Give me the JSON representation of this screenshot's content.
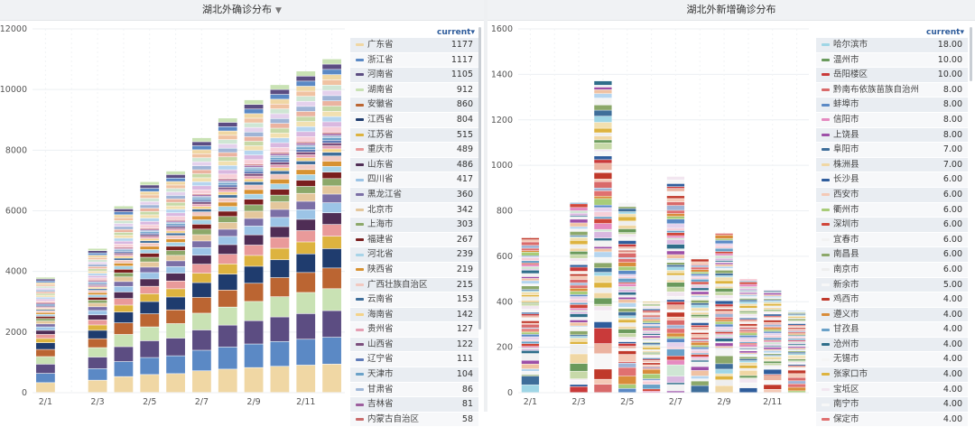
{
  "chart_data": [
    {
      "type": "bar",
      "stacked": true,
      "title": "湖北外确诊分布",
      "categories": [
        "2/1",
        "2/2",
        "2/3",
        "2/4",
        "2/5",
        "2/6",
        "2/7",
        "2/8",
        "2/9",
        "2/10",
        "2/11",
        "2/12"
      ],
      "xtick_labels": [
        "2/1",
        "2/3",
        "2/5",
        "2/7",
        "2/9",
        "2/11"
      ],
      "yticks": [
        0,
        2000,
        4000,
        6000,
        8000,
        10000,
        12000
      ],
      "ylim": [
        0,
        12000
      ],
      "totals": [
        3800,
        0,
        4750,
        6150,
        6950,
        7300,
        8400,
        9050,
        9650,
        10150,
        10600,
        11000
      ],
      "legend_header": "current",
      "series": [
        {
          "name": "广东省",
          "value": "1177",
          "color": "#f0d7a4"
        },
        {
          "name": "浙江省",
          "value": "1117",
          "color": "#5b89c5"
        },
        {
          "name": "河南省",
          "value": "1105",
          "color": "#5c4d82"
        },
        {
          "name": "湖南省",
          "value": "912",
          "color": "#c9e2b4"
        },
        {
          "name": "安徽省",
          "value": "860",
          "color": "#bb6532"
        },
        {
          "name": "江西省",
          "value": "804",
          "color": "#1f3c6e"
        },
        {
          "name": "江苏省",
          "value": "515",
          "color": "#ddb33f"
        },
        {
          "name": "重庆市",
          "value": "489",
          "color": "#e99a9a"
        },
        {
          "name": "山东省",
          "value": "486",
          "color": "#4f2d55"
        },
        {
          "name": "四川省",
          "value": "417",
          "color": "#9cc4e6"
        },
        {
          "name": "黑龙江省",
          "value": "360",
          "color": "#7b6fa6"
        },
        {
          "name": "北京市",
          "value": "342",
          "color": "#e4c79c"
        },
        {
          "name": "上海市",
          "value": "303",
          "color": "#8ca86a"
        },
        {
          "name": "福建省",
          "value": "267",
          "color": "#7a1f1f"
        },
        {
          "name": "河北省",
          "value": "239",
          "color": "#a7d4e8"
        },
        {
          "name": "陕西省",
          "value": "219",
          "color": "#d79232"
        },
        {
          "name": "广西壮族自治区",
          "value": "215",
          "color": "#f2c9c1"
        },
        {
          "name": "云南省",
          "value": "153",
          "color": "#3f6e9a"
        },
        {
          "name": "海南省",
          "value": "142",
          "color": "#f4d38a"
        },
        {
          "name": "贵州省",
          "value": "127",
          "color": "#e59fb3"
        },
        {
          "name": "山西省",
          "value": "122",
          "color": "#7c4f7d"
        },
        {
          "name": "辽宁省",
          "value": "111",
          "color": "#5f7bb8"
        },
        {
          "name": "天津市",
          "value": "104",
          "color": "#6aa1c8"
        },
        {
          "name": "甘肃省",
          "value": "86",
          "color": "#a0b8d8"
        },
        {
          "name": "吉林省",
          "value": "81",
          "color": "#9d5e9e"
        },
        {
          "name": "内蒙古自治区",
          "value": "58",
          "color": "#c96b6b"
        }
      ]
    },
    {
      "type": "bar",
      "stacked": true,
      "title": "湖北外新增确诊分布",
      "categories": [
        "2/1",
        "2/2",
        "2/3",
        "2/4",
        "2/5",
        "2/6",
        "2/7",
        "2/8",
        "2/9",
        "2/10",
        "2/11",
        "2/12"
      ],
      "xtick_labels": [
        "2/1",
        "2/3",
        "2/5",
        "2/7",
        "2/9",
        "2/11"
      ],
      "yticks": [
        0,
        200,
        400,
        600,
        800,
        1000,
        1200,
        1400,
        1600
      ],
      "ylim": [
        0,
        1600
      ],
      "totals": [
        680,
        0,
        835,
        1370,
        835,
        400,
        950,
        600,
        700,
        500,
        450,
        360
      ],
      "legend_header": "current",
      "series": [
        {
          "name": "哈尔滨市",
          "value": "18.00",
          "color": "#9fd6e6"
        },
        {
          "name": "温州市",
          "value": "10.00",
          "color": "#6a9a5c"
        },
        {
          "name": "岳阳楼区",
          "value": "10.00",
          "color": "#c93a3a"
        },
        {
          "name": "黔南布依族苗族自治州",
          "value": "8.00",
          "color": "#d96a6a"
        },
        {
          "name": "蚌埠市",
          "value": "8.00",
          "color": "#5b89c5"
        },
        {
          "name": "信阳市",
          "value": "8.00",
          "color": "#e58ac0"
        },
        {
          "name": "上饶县",
          "value": "8.00",
          "color": "#9d4fa8"
        },
        {
          "name": "阜阳市",
          "value": "7.00",
          "color": "#3f6e9a"
        },
        {
          "name": "株洲县",
          "value": "7.00",
          "color": "#f0d7a4"
        },
        {
          "name": "长沙县",
          "value": "6.00",
          "color": "#2f5d9c"
        },
        {
          "name": "西安市",
          "value": "6.00",
          "color": "#f4c9b6"
        },
        {
          "name": "衢州市",
          "value": "6.00",
          "color": "#a8cc78"
        },
        {
          "name": "深圳市",
          "value": "6.00",
          "color": "#d0463a"
        },
        {
          "name": "宜春市",
          "value": "6.00",
          "color": "#f2f2f2"
        },
        {
          "name": "南昌县",
          "value": "6.00",
          "color": "#8ca86a"
        },
        {
          "name": "南京市",
          "value": "6.00",
          "color": "#eeeeee"
        },
        {
          "name": "新余市",
          "value": "5.00",
          "color": "#f7f7f7"
        },
        {
          "name": "鸡西市",
          "value": "4.00",
          "color": "#c0392b"
        },
        {
          "name": "遵义市",
          "value": "4.00",
          "color": "#d98c3a"
        },
        {
          "name": "甘孜县",
          "value": "4.00",
          "color": "#6aa1c8"
        },
        {
          "name": "沧州市",
          "value": "4.00",
          "color": "#2f6e8a"
        },
        {
          "name": "无锡市",
          "value": "4.00",
          "color": "#f5f5f5"
        },
        {
          "name": "张家口市",
          "value": "4.00",
          "color": "#ddb33f"
        },
        {
          "name": "宝坻区",
          "value": "4.00",
          "color": "#f2e6f0"
        },
        {
          "name": "南宁市",
          "value": "4.00",
          "color": "#f7f7f7"
        },
        {
          "name": "保定市",
          "value": "4.00",
          "color": "#e07070"
        }
      ]
    }
  ]
}
